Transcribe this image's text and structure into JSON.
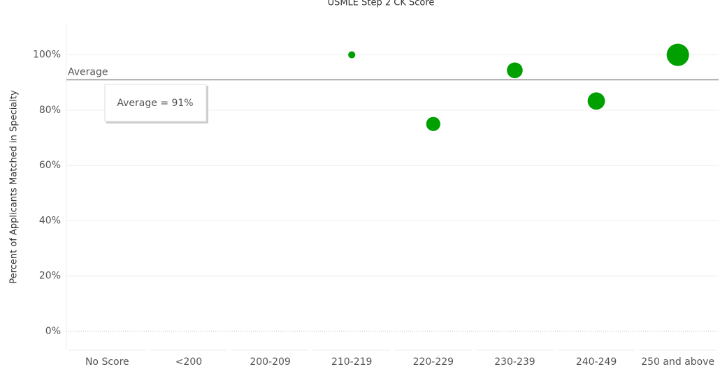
{
  "chart_data": {
    "type": "bubble",
    "title": "USMLE Step 2 CK Score",
    "y_label": "Percent of Applicants Matched in Specialty",
    "categories": [
      "No Score",
      "<200",
      "200-209",
      "210-219",
      "220-229",
      "230-239",
      "240-249",
      "250 and above"
    ],
    "values": [
      null,
      null,
      null,
      100,
      75,
      94.4,
      83.3,
      100
    ],
    "sizes": [
      null,
      null,
      null,
      1,
      4,
      5,
      6,
      10
    ],
    "color": "#00a000",
    "ylim": [
      -6.3,
      111
    ],
    "yticks": [
      {
        "value": 0,
        "label": "0%"
      },
      {
        "value": 20,
        "label": "20%"
      },
      {
        "value": 40,
        "label": "40%"
      },
      {
        "value": 60,
        "label": "60%"
      },
      {
        "value": 80,
        "label": "80%"
      },
      {
        "value": 100,
        "label": "100%"
      }
    ],
    "grid": true,
    "average": {
      "value": 91,
      "label": "Average",
      "annotation": "Average = 91%"
    }
  }
}
